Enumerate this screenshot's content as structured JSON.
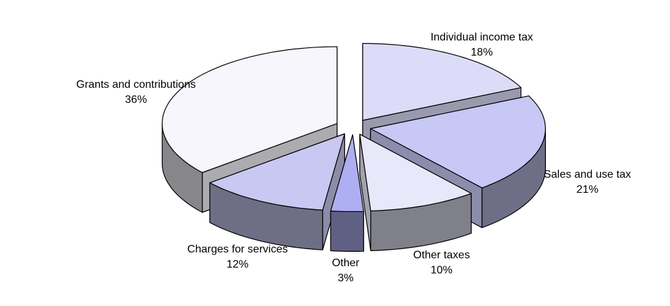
{
  "chart_data": {
    "type": "pie",
    "categories": [
      "Individual income  tax",
      "Sales and use tax",
      "Other taxes",
      "Other",
      "Charges for services",
      "Grants and contributions"
    ],
    "values": [
      18,
      21,
      10,
      3,
      12,
      36
    ],
    "value_labels": [
      "18%",
      "21%",
      "10%",
      "3%",
      "12%",
      "36%"
    ],
    "colors": [
      "#dcdcf8",
      "#c8c8f6",
      "#e8e8fa",
      "#aeaef2",
      "#c8c8f2",
      "#f6f6fc"
    ]
  }
}
